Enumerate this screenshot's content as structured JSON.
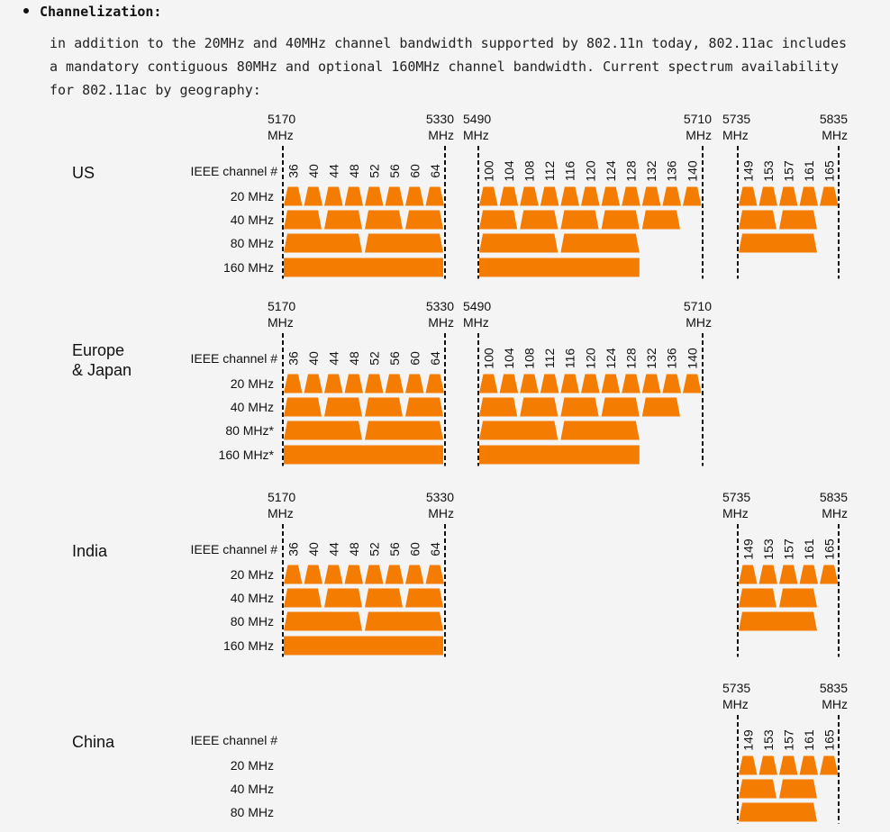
{
  "heading": "Channelization:",
  "paragraph": [
    "in addition to the 20MHz and 40MHz channel bandwidth supported by 802.11n today, 802.11ac includes",
    "a mandatory contiguous 80MHz and optional 160MHz channel bandwidth. Current spectrum availability",
    "for 802.11ac by geography:"
  ],
  "colors": {
    "block": "#f47c00",
    "text": "#111111",
    "background": "#f4f4f4"
  },
  "mhz_unit": "MHz",
  "channel_row_label": "IEEE channel #",
  "bands": {
    "low": {
      "start": "5170",
      "end": "5330",
      "channels": [
        "36",
        "40",
        "44",
        "48",
        "52",
        "56",
        "60",
        "64"
      ],
      "blocks40": 4,
      "blocks80": 2,
      "blocks160": 1
    },
    "mid": {
      "start": "5490",
      "end": "5710",
      "channels": [
        "100",
        "104",
        "108",
        "112",
        "116",
        "120",
        "124",
        "128",
        "132",
        "136",
        "140"
      ],
      "blocks40": 5,
      "blocks80": 2,
      "blocks160": 1
    },
    "high": {
      "start": "5735",
      "end": "5835",
      "channels": [
        "149",
        "153",
        "157",
        "161",
        "165"
      ],
      "blocks40": 2,
      "blocks80": 1,
      "blocks160": 0
    }
  },
  "regions": [
    {
      "name": [
        "US"
      ],
      "rows": [
        "20 MHz",
        "40 MHz",
        "80 MHz",
        "160 MHz"
      ],
      "bands": [
        "low",
        "mid",
        "high"
      ]
    },
    {
      "name": [
        "Europe",
        "& Japan"
      ],
      "rows": [
        "20 MHz",
        "40 MHz",
        "80 MHz*",
        "160 MHz*"
      ],
      "bands": [
        "low",
        "mid"
      ]
    },
    {
      "name": [
        "India"
      ],
      "rows": [
        "20 MHz",
        "40 MHz",
        "80 MHz",
        "160 MHz"
      ],
      "bands": [
        "low",
        "high"
      ]
    },
    {
      "name": [
        "China"
      ],
      "rows": [
        "20 MHz",
        "40 MHz",
        "80 MHz"
      ],
      "bands": [
        "high"
      ]
    }
  ]
}
